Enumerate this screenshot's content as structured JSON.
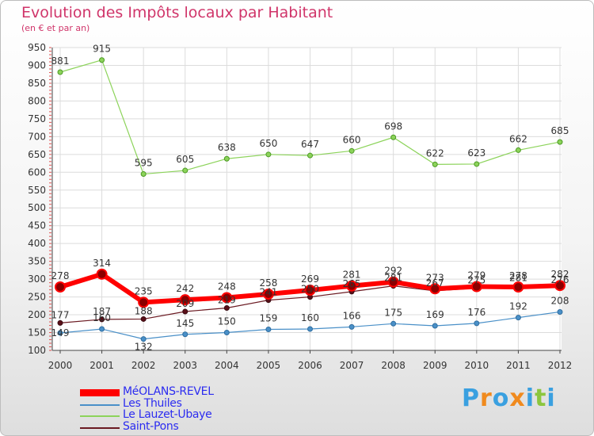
{
  "title": "Evolution des Impôts locaux par Habitant",
  "subtitle": "(en € et par an)",
  "chart_data": {
    "type": "line",
    "title": "Evolution des Impôts locaux par Habitant",
    "ylabel": "(en € et par an)",
    "xlabel": "",
    "x": [
      "2000",
      "2001",
      "2002",
      "2003",
      "2004",
      "2005",
      "2006",
      "2007",
      "2008",
      "2009",
      "2010",
      "2011",
      "2012"
    ],
    "ylim": [
      100,
      950
    ],
    "yticks": [
      100,
      150,
      200,
      250,
      300,
      350,
      400,
      450,
      500,
      550,
      600,
      650,
      700,
      750,
      800,
      850,
      900,
      950
    ],
    "grid": true,
    "legend_position": "bottom-left",
    "series": [
      {
        "name": "MéOLANS-REVEL",
        "color": "#ff0000",
        "values": [
          278,
          314,
          235,
          242,
          248,
          258,
          269,
          281,
          292,
          273,
          279,
          278,
          282
        ]
      },
      {
        "name": "Les Thuiles",
        "color": "#4a90c8",
        "values": [
          149,
          160,
          132,
          145,
          150,
          159,
          160,
          166,
          175,
          169,
          176,
          192,
          208
        ]
      },
      {
        "name": "Le Lauzet-Ubaye",
        "color": "#8cd35a",
        "values": [
          881,
          915,
          595,
          605,
          638,
          650,
          647,
          660,
          698,
          622,
          623,
          662,
          685
        ]
      },
      {
        "name": "Saint-Pons",
        "color": "#6b1a22",
        "values": [
          177,
          187,
          188,
          209,
          219,
          241,
          250,
          265,
          281,
          267,
          275,
          281,
          276
        ]
      }
    ]
  },
  "logo": {
    "text": [
      "P",
      "r",
      "o",
      "x",
      "i",
      "t",
      "i"
    ],
    "colors": [
      "#3aa0e0",
      "#f08a1e",
      "#3aa0e0",
      "#f08a1e",
      "#3aa0e0",
      "#8cc63e",
      "#3aa0e0"
    ]
  }
}
